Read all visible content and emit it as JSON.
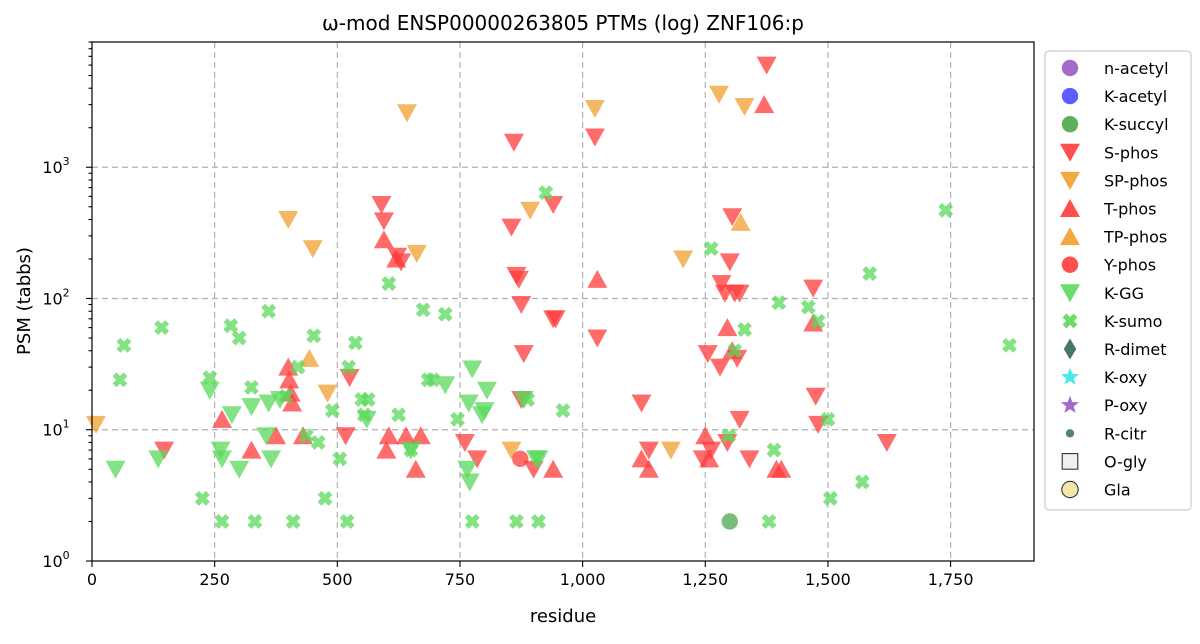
{
  "chart_data": {
    "type": "scatter",
    "title": "ω-mod ENSP00000263805 PTMs (log) ZNF106:p",
    "xlabel": "residue",
    "ylabel": "PSM (tabbs)",
    "xlim": [
      0,
      1920
    ],
    "ylim": [
      1,
      9000
    ],
    "yscale": "log",
    "grid": true,
    "legend_position": "right, outside plot",
    "x_ticks": [
      {
        "value": 0,
        "label": "0"
      },
      {
        "value": 250,
        "label": "250"
      },
      {
        "value": 500,
        "label": "500"
      },
      {
        "value": 750,
        "label": "750"
      },
      {
        "value": 1000,
        "label": "1,000"
      },
      {
        "value": 1250,
        "label": "1,250"
      },
      {
        "value": 1500,
        "label": "1,500"
      },
      {
        "value": 1750,
        "label": "1,750"
      }
    ],
    "y_ticks": [
      {
        "value": 1,
        "base": "10",
        "exp": "0"
      },
      {
        "value": 10,
        "base": "10",
        "exp": "1"
      },
      {
        "value": 100,
        "base": "10",
        "exp": "2"
      },
      {
        "value": 1000,
        "base": "10",
        "exp": "3"
      }
    ],
    "series": [
      {
        "name": "n-acetyl",
        "marker": "circle",
        "color": "#9b59c6",
        "points": []
      },
      {
        "name": "K-acetyl",
        "marker": "circle",
        "color": "#4b4bff",
        "points": []
      },
      {
        "name": "K-succyl",
        "marker": "circle",
        "color": "#4aa64a",
        "points": [
          [
            1300,
            2
          ]
        ]
      },
      {
        "name": "S-phos",
        "marker": "triangle-down",
        "color": "#ff3b3b",
        "points": [
          [
            147,
            7
          ],
          [
            590,
            520
          ],
          [
            595,
            390
          ],
          [
            517,
            9
          ],
          [
            525,
            25
          ],
          [
            622,
            210
          ],
          [
            630,
            190
          ],
          [
            760,
            8
          ],
          [
            785,
            6
          ],
          [
            860,
            1550
          ],
          [
            855,
            350
          ],
          [
            865,
            150
          ],
          [
            870,
            140
          ],
          [
            875,
            90
          ],
          [
            880,
            38
          ],
          [
            875,
            17
          ],
          [
            900,
            5
          ],
          [
            940,
            70
          ],
          [
            945,
            70
          ],
          [
            940,
            520
          ],
          [
            1025,
            1700
          ],
          [
            1030,
            50
          ],
          [
            1120,
            16
          ],
          [
            1135,
            7
          ],
          [
            1245,
            6
          ],
          [
            1255,
            38
          ],
          [
            1262,
            7
          ],
          [
            1280,
            30
          ],
          [
            1283,
            130
          ],
          [
            1290,
            110
          ],
          [
            1295,
            8
          ],
          [
            1300,
            190
          ],
          [
            1305,
            420
          ],
          [
            1310,
            110
          ],
          [
            1315,
            35
          ],
          [
            1320,
            12
          ],
          [
            1320,
            110
          ],
          [
            1340,
            6
          ],
          [
            1375,
            6000
          ],
          [
            1470,
            120
          ],
          [
            1475,
            18
          ],
          [
            1480,
            11
          ],
          [
            1620,
            8
          ]
        ]
      },
      {
        "name": "SP-phos",
        "marker": "triangle-down",
        "color": "#f0a030",
        "points": [
          [
            8,
            11
          ],
          [
            400,
            400
          ],
          [
            450,
            240
          ],
          [
            480,
            19
          ],
          [
            642,
            2600
          ],
          [
            662,
            220
          ],
          [
            855,
            7
          ],
          [
            893,
            470
          ],
          [
            1025,
            2800
          ],
          [
            1180,
            7
          ],
          [
            1205,
            200
          ],
          [
            1278,
            3600
          ],
          [
            1330,
            2900
          ]
        ]
      },
      {
        "name": "T-phos",
        "marker": "triangle-up",
        "color": "#ff3b3b",
        "points": [
          [
            265,
            12
          ],
          [
            325,
            7
          ],
          [
            375,
            9
          ],
          [
            400,
            30
          ],
          [
            402,
            24
          ],
          [
            405,
            19
          ],
          [
            408,
            16
          ],
          [
            430,
            9
          ],
          [
            595,
            280
          ],
          [
            620,
            200
          ],
          [
            600,
            7
          ],
          [
            605,
            9
          ],
          [
            640,
            9
          ],
          [
            660,
            5
          ],
          [
            670,
            9
          ],
          [
            1030,
            140
          ],
          [
            1120,
            6
          ],
          [
            1135,
            5
          ],
          [
            1250,
            9
          ],
          [
            1258,
            6
          ],
          [
            1295,
            60
          ],
          [
            1305,
            40
          ],
          [
            1370,
            3000
          ],
          [
            1395,
            5
          ],
          [
            1405,
            5
          ],
          [
            1470,
            65
          ],
          [
            940,
            5
          ]
        ]
      },
      {
        "name": "TP-phos",
        "marker": "triangle-up",
        "color": "#f0a030",
        "points": [
          [
            443,
            35
          ],
          [
            1322,
            380
          ]
        ]
      },
      {
        "name": "Y-phos",
        "marker": "circle",
        "color": "#ff3b3b",
        "points": [
          [
            873,
            6
          ]
        ]
      },
      {
        "name": "K-GG",
        "marker": "triangle-down",
        "color": "#5ad85a",
        "points": [
          [
            48,
            5
          ],
          [
            135,
            6
          ],
          [
            240,
            20
          ],
          [
            262,
            7
          ],
          [
            265,
            6
          ],
          [
            285,
            13
          ],
          [
            300,
            5
          ],
          [
            325,
            15
          ],
          [
            355,
            9
          ],
          [
            360,
            16
          ],
          [
            365,
            6
          ],
          [
            383,
            17
          ],
          [
            560,
            12
          ],
          [
            650,
            7
          ],
          [
            720,
            22
          ],
          [
            765,
            5
          ],
          [
            768,
            16
          ],
          [
            770,
            4
          ],
          [
            775,
            29
          ],
          [
            795,
            13
          ],
          [
            800,
            14
          ],
          [
            805,
            20
          ],
          [
            880,
            17
          ],
          [
            905,
            6
          ],
          [
            910,
            6
          ]
        ]
      },
      {
        "name": "K-sumo",
        "marker": "x",
        "color": "#5ad85a",
        "points": [
          [
            65,
            44
          ],
          [
            57,
            24
          ],
          [
            142,
            60
          ],
          [
            225,
            3
          ],
          [
            240,
            25
          ],
          [
            265,
            2
          ],
          [
            283,
            62
          ],
          [
            300,
            50
          ],
          [
            325,
            21
          ],
          [
            332,
            2
          ],
          [
            360,
            80
          ],
          [
            395,
            18
          ],
          [
            410,
            2
          ],
          [
            420,
            30
          ],
          [
            437,
            9
          ],
          [
            452,
            52
          ],
          [
            461,
            8
          ],
          [
            475,
            3
          ],
          [
            490,
            14
          ],
          [
            505,
            6
          ],
          [
            520,
            2
          ],
          [
            523,
            30
          ],
          [
            537,
            46
          ],
          [
            550,
            17
          ],
          [
            555,
            13
          ],
          [
            563,
            17
          ],
          [
            605,
            130
          ],
          [
            625,
            13
          ],
          [
            650,
            7
          ],
          [
            675,
            82
          ],
          [
            685,
            24
          ],
          [
            695,
            24
          ],
          [
            720,
            76
          ],
          [
            745,
            12
          ],
          [
            775,
            2
          ],
          [
            865,
            2
          ],
          [
            888,
            17
          ],
          [
            910,
            2
          ],
          [
            925,
            640
          ],
          [
            960,
            14
          ],
          [
            1262,
            240
          ],
          [
            1298,
            9
          ],
          [
            1310,
            40
          ],
          [
            1330,
            58
          ],
          [
            1380,
            2
          ],
          [
            1390,
            7
          ],
          [
            1400,
            93
          ],
          [
            1460,
            86
          ],
          [
            1480,
            67
          ],
          [
            1500,
            12
          ],
          [
            1505,
            3
          ],
          [
            1570,
            4
          ],
          [
            1585,
            155
          ],
          [
            1740,
            470
          ],
          [
            1870,
            44
          ]
        ]
      },
      {
        "name": "R-dimet",
        "marker": "diamond",
        "color": "#2f6b4f",
        "points": []
      },
      {
        "name": "K-oxy",
        "marker": "star",
        "color": "#37e6e6",
        "points": []
      },
      {
        "name": "P-oxy",
        "marker": "star",
        "color": "#9b59c6",
        "points": []
      },
      {
        "name": "R-citr",
        "marker": "small-circle",
        "color": "#3d7a5c",
        "points": []
      },
      {
        "name": "O-gly",
        "marker": "square-open",
        "color": "#f0f0f0",
        "points": []
      },
      {
        "name": "Gla",
        "marker": "circle-open",
        "color": "#f3e6a8",
        "points": []
      }
    ]
  }
}
